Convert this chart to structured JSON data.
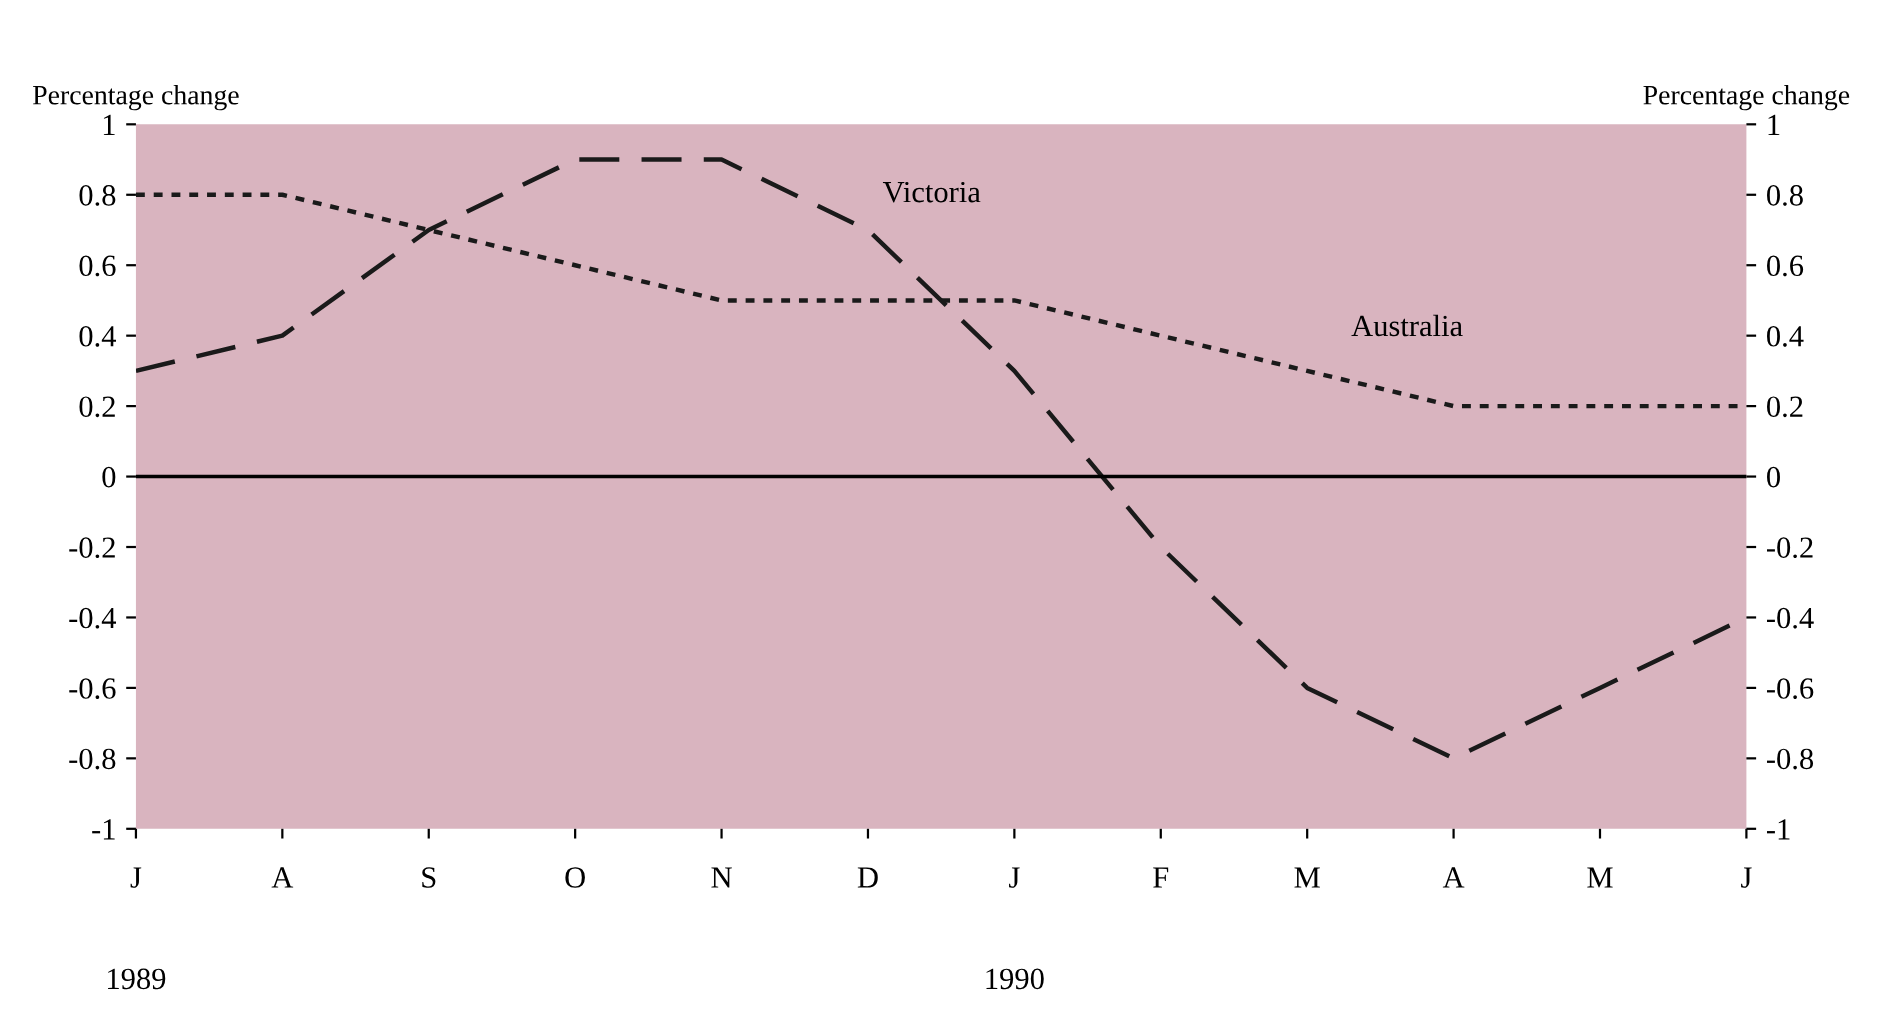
{
  "chart_data": {
    "type": "line",
    "categories": [
      "J",
      "A",
      "S",
      "O",
      "N",
      "D",
      "J",
      "F",
      "M",
      "A",
      "M",
      "J"
    ],
    "series": [
      {
        "name": "Victoria",
        "color": "#1a1a1a",
        "line_style": "dashed",
        "values": [
          0.3,
          0.4,
          0.7,
          0.9,
          0.9,
          0.7,
          0.3,
          -0.2,
          -0.6,
          -0.8,
          -0.6,
          -0.4
        ]
      },
      {
        "name": "Australia",
        "color": "#1a1a1a",
        "line_style": "dotted",
        "values": [
          0.8,
          0.8,
          0.7,
          0.6,
          0.5,
          0.5,
          0.5,
          0.4,
          0.3,
          0.2,
          0.2,
          0.2
        ]
      }
    ],
    "ylabel": "Percentage change",
    "y2label": "Percentage change",
    "ylim": [
      -1,
      1
    ],
    "yticks": [
      -1,
      -0.8,
      -0.6,
      -0.4,
      -0.2,
      0,
      0.2,
      0.4,
      0.6,
      0.8,
      1
    ],
    "y2lim": [
      -1,
      1
    ],
    "y2ticks": [
      -1,
      -0.8,
      -0.6,
      -0.4,
      -0.2,
      0,
      0.2,
      0.4,
      0.6,
      0.8,
      1
    ],
    "ref_lines": [
      {
        "axis": "y",
        "value": 0,
        "color": "#000000",
        "line_style": "solid"
      }
    ],
    "annotations": [
      "1989",
      "1990"
    ],
    "grid": false,
    "legend": false,
    "marker": "none"
  }
}
